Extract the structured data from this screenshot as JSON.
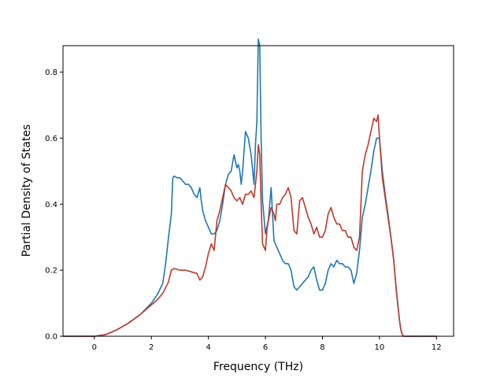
{
  "chart_data": {
    "type": "line",
    "title": "",
    "xlabel": "Frequency (THz)",
    "ylabel": "Partial Density of States",
    "xlim": [
      -1.1,
      12.6
    ],
    "ylim": [
      0,
      0.88
    ],
    "xticks": [
      0,
      2,
      4,
      6,
      8,
      10,
      12
    ],
    "yticks": [
      0.0,
      0.2,
      0.4,
      0.6,
      0.8
    ],
    "xtick_labels": [
      "0",
      "2",
      "4",
      "6",
      "8",
      "10",
      "12"
    ],
    "ytick_labels": [
      "0.0",
      "0.2",
      "0.4",
      "0.6",
      "0.8"
    ],
    "grid": false,
    "legend": false,
    "series": [
      {
        "color": "#1f77b4",
        "x": [
          -1.1,
          0,
          0.4,
          0.8,
          1.2,
          1.6,
          2.0,
          2.2,
          2.4,
          2.5,
          2.6,
          2.7,
          2.75,
          2.8,
          2.9,
          3.0,
          3.1,
          3.2,
          3.3,
          3.4,
          3.5,
          3.6,
          3.7,
          3.75,
          3.8,
          3.9,
          4.0,
          4.1,
          4.2,
          4.3,
          4.4,
          4.5,
          4.6,
          4.7,
          4.8,
          4.9,
          5.0,
          5.05,
          5.1,
          5.15,
          5.2,
          5.3,
          5.4,
          5.5,
          5.6,
          5.65,
          5.7,
          5.75,
          5.8,
          5.85,
          5.9,
          6.0,
          6.1,
          6.2,
          6.3,
          6.4,
          6.5,
          6.6,
          6.7,
          6.8,
          6.9,
          7.0,
          7.1,
          7.2,
          7.3,
          7.4,
          7.5,
          7.6,
          7.7,
          7.8,
          7.9,
          8.0,
          8.1,
          8.2,
          8.3,
          8.4,
          8.5,
          8.6,
          8.7,
          8.8,
          8.9,
          9.0,
          9.1,
          9.2,
          9.3,
          9.4,
          9.5,
          9.6,
          9.7,
          9.8,
          9.9,
          10.0,
          10.1,
          10.2,
          10.3,
          10.4,
          10.5,
          10.6,
          10.7,
          10.75,
          10.8,
          10.85,
          10.9,
          11.0,
          12.0
        ],
        "y": [
          0,
          0,
          0.005,
          0.02,
          0.04,
          0.065,
          0.1,
          0.125,
          0.16,
          0.22,
          0.3,
          0.37,
          0.48,
          0.485,
          0.48,
          0.48,
          0.47,
          0.46,
          0.46,
          0.45,
          0.43,
          0.42,
          0.45,
          0.41,
          0.38,
          0.35,
          0.33,
          0.31,
          0.31,
          0.32,
          0.35,
          0.4,
          0.46,
          0.49,
          0.5,
          0.55,
          0.51,
          0.52,
          0.5,
          0.46,
          0.5,
          0.62,
          0.6,
          0.55,
          0.46,
          0.58,
          0.65,
          0.9,
          0.88,
          0.6,
          0.41,
          0.31,
          0.35,
          0.45,
          0.29,
          0.27,
          0.25,
          0.23,
          0.22,
          0.22,
          0.2,
          0.15,
          0.14,
          0.15,
          0.16,
          0.17,
          0.18,
          0.2,
          0.21,
          0.17,
          0.14,
          0.14,
          0.16,
          0.2,
          0.22,
          0.21,
          0.23,
          0.22,
          0.22,
          0.21,
          0.21,
          0.2,
          0.16,
          0.19,
          0.26,
          0.36,
          0.4,
          0.45,
          0.5,
          0.56,
          0.6,
          0.6,
          0.5,
          0.43,
          0.37,
          0.3,
          0.23,
          0.13,
          0.05,
          0.02,
          0.005,
          0,
          0,
          0,
          0
        ]
      },
      {
        "color": "#c0392b",
        "x": [
          -1.1,
          0,
          0.4,
          0.8,
          1.2,
          1.6,
          2.0,
          2.2,
          2.4,
          2.6,
          2.7,
          2.8,
          3.0,
          3.2,
          3.4,
          3.6,
          3.7,
          3.8,
          3.9,
          4.0,
          4.1,
          4.2,
          4.3,
          4.4,
          4.5,
          4.6,
          4.7,
          4.8,
          4.9,
          5.0,
          5.1,
          5.2,
          5.3,
          5.4,
          5.5,
          5.6,
          5.7,
          5.75,
          5.8,
          5.85,
          5.9,
          6.0,
          6.05,
          6.1,
          6.2,
          6.3,
          6.35,
          6.4,
          6.5,
          6.6,
          6.7,
          6.8,
          6.9,
          7.0,
          7.1,
          7.2,
          7.3,
          7.4,
          7.5,
          7.6,
          7.7,
          7.8,
          7.9,
          8.0,
          8.1,
          8.2,
          8.3,
          8.4,
          8.5,
          8.6,
          8.7,
          8.8,
          8.9,
          9.0,
          9.1,
          9.2,
          9.3,
          9.4,
          9.5,
          9.6,
          9.7,
          9.8,
          9.9,
          9.95,
          10.0,
          10.1,
          10.2,
          10.3,
          10.4,
          10.5,
          10.6,
          10.7,
          10.75,
          10.8,
          10.85,
          10.9,
          11.0,
          12.0
        ],
        "y": [
          0,
          0,
          0.005,
          0.02,
          0.04,
          0.065,
          0.095,
          0.11,
          0.13,
          0.165,
          0.2,
          0.205,
          0.2,
          0.2,
          0.195,
          0.19,
          0.17,
          0.18,
          0.21,
          0.25,
          0.28,
          0.26,
          0.35,
          0.38,
          0.42,
          0.46,
          0.45,
          0.44,
          0.42,
          0.41,
          0.42,
          0.4,
          0.43,
          0.43,
          0.44,
          0.42,
          0.5,
          0.58,
          0.55,
          0.4,
          0.28,
          0.26,
          0.32,
          0.35,
          0.39,
          0.37,
          0.35,
          0.4,
          0.4,
          0.42,
          0.43,
          0.45,
          0.42,
          0.32,
          0.31,
          0.41,
          0.42,
          0.39,
          0.36,
          0.34,
          0.31,
          0.33,
          0.3,
          0.3,
          0.32,
          0.37,
          0.39,
          0.36,
          0.34,
          0.34,
          0.32,
          0.32,
          0.3,
          0.3,
          0.27,
          0.26,
          0.3,
          0.5,
          0.55,
          0.58,
          0.62,
          0.66,
          0.65,
          0.67,
          0.6,
          0.48,
          0.42,
          0.36,
          0.3,
          0.23,
          0.13,
          0.05,
          0.02,
          0.005,
          0,
          0,
          0,
          0
        ]
      }
    ]
  }
}
